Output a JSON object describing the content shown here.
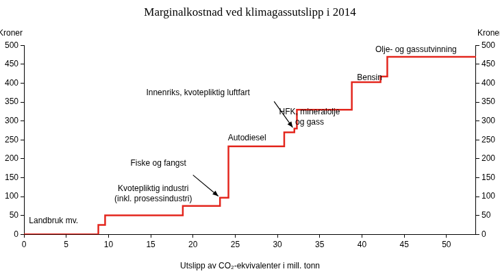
{
  "chart_data": {
    "type": "line",
    "title": "Marginalkostnad ved klimagassutslipp i 2014",
    "x_label": "Utslipp av CO₂-ekvivalenter i mill. tonn",
    "y_label": "Kroner",
    "y2_label": "Kroner",
    "x": [
      0,
      8.8,
      9.6,
      18.8,
      23.2,
      24.2,
      30.8,
      32.0,
      32.3,
      38.8,
      42.2,
      43.0,
      53.5
    ],
    "values": [
      0,
      25,
      50,
      75,
      97,
      233,
      270,
      280,
      330,
      403,
      418,
      470,
      470
    ],
    "color": "#e3261d",
    "line_style": "stepped",
    "xlim": [
      0,
      53.5
    ],
    "xticks": [
      0,
      5,
      10,
      15,
      20,
      25,
      30,
      35,
      40,
      45,
      50
    ],
    "ylim": [
      0,
      500
    ],
    "yticks": [
      0,
      50,
      100,
      150,
      200,
      250,
      300,
      350,
      400,
      450,
      500
    ],
    "y2lim": [
      0,
      500
    ],
    "y2ticks": [
      0,
      50,
      100,
      150,
      200,
      250,
      300,
      350,
      400,
      450,
      500
    ],
    "grid": false,
    "annotations": [
      {
        "text": "Landbruk mv.",
        "x": 3.5,
        "y": 36
      },
      {
        "text": "Kvotepliktig industri\n(inkl. prosessindustri)",
        "x": 15.3,
        "y": 107
      },
      {
        "text": "Fiske og fangst",
        "x": 15.9,
        "y": 187,
        "arrow_from": [
          20.0,
          157
        ],
        "arrow_to": [
          23.0,
          101
        ]
      },
      {
        "text": "Autodiesel",
        "x": 26.4,
        "y": 254
      },
      {
        "text": "Innenriks, kvotepliktig luftfart",
        "x": 20.6,
        "y": 375,
        "arrow_from": [
          29.6,
          352
        ],
        "arrow_to": [
          31.8,
          283
        ]
      },
      {
        "text": "HFK, mineralolje\nog gass",
        "x": 33.8,
        "y": 310
      },
      {
        "text": "Bensin",
        "x": 40.9,
        "y": 414
      },
      {
        "text": "Olje- og gassutvinning",
        "x": 46.4,
        "y": 488
      }
    ]
  }
}
